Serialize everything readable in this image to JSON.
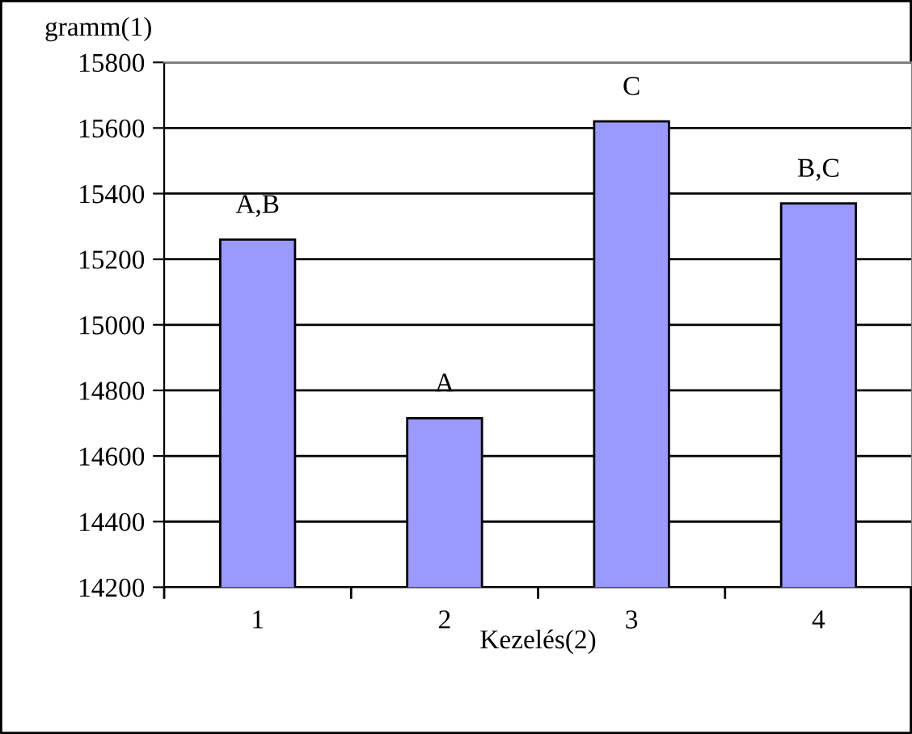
{
  "chart_data": {
    "type": "bar",
    "ylabel": "gramm(1)",
    "xlabel": "Kezelés(2)",
    "categories": [
      "1",
      "2",
      "3",
      "4"
    ],
    "values": [
      15260,
      14715,
      15620,
      15370
    ],
    "color": "#9999ff",
    "ylim": [
      14200,
      15800
    ],
    "yticks": [
      14200,
      14400,
      14600,
      14800,
      15000,
      15200,
      15400,
      15600,
      15800
    ],
    "grid": "y",
    "annotations": [
      {
        "text": "A,B",
        "x": "1",
        "y": 15260
      },
      {
        "text": "A",
        "x": "2",
        "y": 14715
      },
      {
        "text": "C",
        "x": "3",
        "y": 15620
      },
      {
        "text": "B,C",
        "x": "4",
        "y": 15370
      }
    ]
  }
}
